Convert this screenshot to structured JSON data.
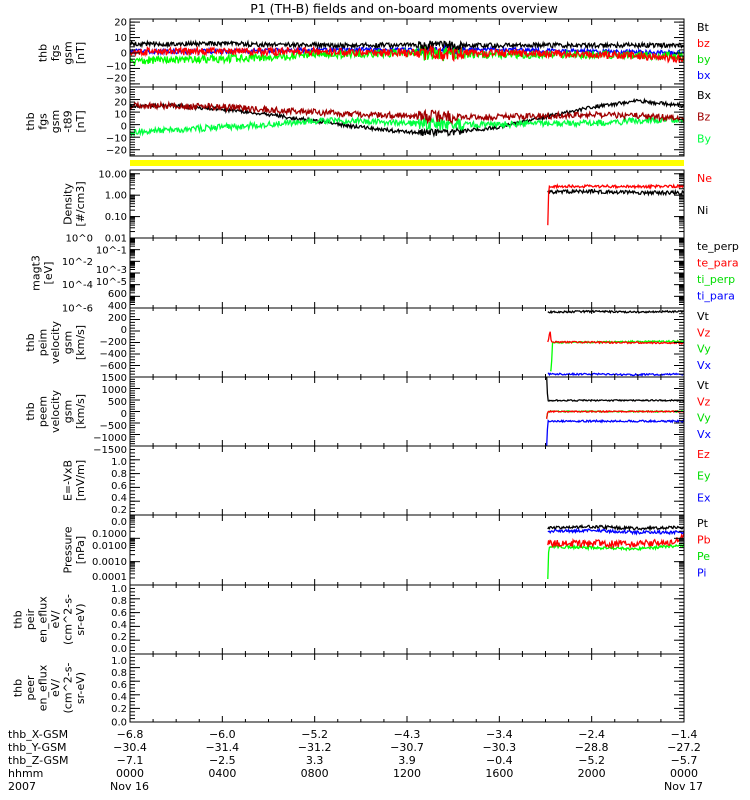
{
  "chart_data": {
    "type": "line",
    "title": "P1 (TH-B) fields and on-board moments overview",
    "xlim_hours": [
      0,
      24
    ],
    "x_ticks": {
      "row_labels": [
        "thb_X-GSM",
        "thb_Y-GSM",
        "thb_Z-GSM",
        "hhmm",
        "2007"
      ],
      "columns": [
        {
          "hour": 0,
          "lines": [
            "-6.8",
            "-30.4",
            "-7.1",
            "0000",
            "Nov 16"
          ]
        },
        {
          "hour": 4,
          "lines": [
            "-6.0",
            "-31.4",
            "-2.5",
            "0400",
            ""
          ]
        },
        {
          "hour": 8,
          "lines": [
            "-5.2",
            "-31.2",
            "3.3",
            "0800",
            ""
          ]
        },
        {
          "hour": 12,
          "lines": [
            "-4.3",
            "-30.7",
            "3.9",
            "1200",
            ""
          ]
        },
        {
          "hour": 16,
          "lines": [
            "-3.4",
            "-30.3",
            "-0.4",
            "1600",
            ""
          ]
        },
        {
          "hour": 20,
          "lines": [
            "-2.4",
            "-28.8",
            "-5.2",
            "2000",
            ""
          ]
        },
        {
          "hour": 24,
          "lines": [
            "-1.4",
            "-27.2",
            "-5.7",
            "0000",
            "Nov 17"
          ]
        }
      ]
    },
    "status_bar": {
      "color": "#ffff00"
    },
    "panels": [
      {
        "ylabel": [
          "thb",
          "fgs",
          "gsm",
          "[nT]"
        ],
        "scale": "linear",
        "ylim": [
          -22,
          22
        ],
        "ticks": [
          {
            "v": 20,
            "l": "20"
          },
          {
            "v": 10,
            "l": "10"
          },
          {
            "v": 0,
            "l": "0"
          },
          {
            "v": -10,
            "l": "-10"
          },
          {
            "v": -20,
            "l": "-20"
          }
        ],
        "minor_step": 2,
        "legend": [
          {
            "label": "Bt",
            "color": "#000000"
          },
          {
            "label": "bz",
            "color": "#ff0000"
          },
          {
            "label": "by",
            "color": "#00dd00"
          },
          {
            "label": "bx",
            "color": "#0000ff"
          }
        ],
        "series": [
          {
            "name": "bx",
            "color": "#0000ff",
            "noise": 1.5,
            "t": [
              0,
              4,
              8,
              12,
              16,
              20,
              24
            ],
            "v": [
              1,
              1,
              2,
              2,
              2,
              1,
              0
            ]
          },
          {
            "name": "by",
            "color": "#00ff00",
            "noise": 2.5,
            "t": [
              0,
              3,
              6,
              8,
              12,
              16,
              20,
              24
            ],
            "v": [
              -5,
              -4,
              -3,
              -1,
              0,
              -1,
              -1,
              -2
            ]
          },
          {
            "name": "bz",
            "color": "#ff0000",
            "noise": 2.5,
            "t": [
              0,
              4,
              8,
              12,
              16,
              20,
              22,
              24
            ],
            "v": [
              1,
              1,
              1,
              0,
              0,
              -1,
              -2,
              -4
            ]
          },
          {
            "name": "Bt",
            "color": "#000000",
            "noise": 1.5,
            "t": [
              0,
              4,
              8,
              12,
              16,
              20,
              24
            ],
            "v": [
              6,
              6,
              5,
              5,
              5,
              5,
              5
            ]
          }
        ]
      },
      {
        "ylabel": [
          "thb",
          "fgs",
          "gsm",
          "-t89",
          "[nT]"
        ],
        "scale": "linear",
        "ylim": [
          -25,
          30
        ],
        "ticks": [
          {
            "v": 30,
            "l": "30"
          },
          {
            "v": 20,
            "l": "20"
          },
          {
            "v": 10,
            "l": "10"
          },
          {
            "v": 0,
            "l": "0"
          },
          {
            "v": -10,
            "l": "-10"
          },
          {
            "v": -20,
            "l": "-20"
          }
        ],
        "minor_step": 2,
        "legend": [
          {
            "label": "Bx",
            "color": "#000000"
          },
          {
            "label": "Bz",
            "color": "#a00000"
          },
          {
            "label": "By",
            "color": "#00ff40"
          }
        ],
        "series": [
          {
            "name": "Bx",
            "color": "#000000",
            "noise": 1.5,
            "t": [
              0,
              2,
              4,
              6,
              8,
              10,
              12,
              14,
              16,
              18,
              20,
              22,
              24
            ],
            "v": [
              15,
              15,
              12,
              8,
              3,
              -2,
              -6,
              -6,
              -2,
              6,
              14,
              19,
              15
            ]
          },
          {
            "name": "By",
            "color": "#00ff40",
            "noise": 2.5,
            "t": [
              0,
              2,
              4,
              6,
              8,
              10,
              12,
              14,
              16,
              18,
              20,
              22,
              24
            ],
            "v": [
              -6,
              -4,
              -2,
              0,
              3,
              3,
              1,
              0,
              0,
              1,
              1,
              3,
              4
            ]
          },
          {
            "name": "Bz",
            "color": "#a00000",
            "noise": 2.5,
            "t": [
              0,
              2,
              4,
              6,
              8,
              10,
              12,
              14,
              16,
              18,
              20,
              22,
              24
            ],
            "v": [
              15,
              15,
              14,
              12,
              10,
              8,
              7,
              6,
              6,
              7,
              8,
              7,
              5
            ]
          }
        ]
      },
      {
        "ylabel": [
          "Density",
          "[#/cm3]"
        ],
        "scale": "log",
        "ylim": [
          0.01,
          15
        ],
        "ticks": [
          {
            "v": 10,
            "l": "10.00"
          },
          {
            "v": 1,
            "l": "1.00"
          },
          {
            "v": 0.1,
            "l": "0.10"
          },
          {
            "v": 0.01,
            "l": "0.01"
          }
        ],
        "legend": [
          {
            "label": "Ne",
            "color": "#ff0000"
          },
          {
            "label": "Ni",
            "color": "#000000"
          }
        ],
        "series": [
          {
            "name": "Ni",
            "color": "#000000",
            "noise": 0.2,
            "t": [
              18.1,
              18.15,
              20,
              22,
              24
            ],
            "v": [
              1.4,
              1.4,
              1.5,
              1.3,
              1.3
            ]
          },
          {
            "name": "Ne",
            "color": "#ff0000",
            "noise": 0.15,
            "t": [
              18.1,
              18.12,
              18.15,
              20,
              22,
              24
            ],
            "v": [
              0.04,
              0.04,
              2.6,
              2.6,
              2.5,
              2.6
            ]
          }
        ]
      },
      {
        "ylabel": [
          "magt3",
          "[eV]"
        ],
        "scale": "log",
        "ylim": [
          1e-06,
          1
        ],
        "ticks": [
          {
            "v": 1,
            "l": "10^0"
          },
          {
            "v": 0.1,
            "l": "10^-1"
          },
          {
            "v": 0.01,
            "l": "10^-2"
          },
          {
            "v": 0.001,
            "l": "10^-3"
          },
          {
            "v": 0.0001,
            "l": "10^-4"
          },
          {
            "v": 1e-05,
            "l": "10^-5"
          },
          {
            "v": 1e-06,
            "l": "10^-6"
          }
        ],
        "legend": [
          {
            "label": "te_perp",
            "color": "#000000"
          },
          {
            "label": "te_para",
            "color": "#ff0000"
          },
          {
            "label": "ti_perp",
            "color": "#00dd00"
          },
          {
            "label": "ti_para",
            "color": "#0000ff"
          }
        ],
        "series": []
      },
      {
        "ylabel": [
          "thb",
          "peim",
          "velocity",
          "gsm",
          "[km/s]"
        ],
        "scale": "linear",
        "ylim": [
          -600,
          600
        ],
        "ticks": [
          {
            "v": 600,
            "l": "600"
          },
          {
            "v": 400,
            "l": "400"
          },
          {
            "v": 200,
            "l": "200"
          },
          {
            "v": 0,
            "l": "0"
          },
          {
            "v": -200,
            "l": "-200"
          },
          {
            "v": -400,
            "l": "-400"
          },
          {
            "v": -600,
            "l": "-600"
          }
        ],
        "minor_step": 50,
        "legend": [
          {
            "label": "Vt",
            "color": "#000000"
          },
          {
            "label": "Vz",
            "color": "#ff0000"
          },
          {
            "label": "Vy",
            "color": "#00dd00"
          },
          {
            "label": "Vx",
            "color": "#0000ff"
          }
        ],
        "series": [
          {
            "name": "Vy",
            "color": "#00ff00",
            "noise": 15,
            "t": [
              18.2,
              18.25,
              18.3,
              21,
              24
            ],
            "v": [
              -500,
              -500,
              0,
              10,
              20
            ]
          },
          {
            "name": "Vz",
            "color": "#ff0000",
            "noise": 15,
            "t": [
              18.1,
              18.2,
              18.25,
              21,
              24
            ],
            "v": [
              0,
              200,
              10,
              0,
              -10
            ]
          },
          {
            "name": "Vx",
            "color": "#0000ff",
            "noise": 15,
            "t": [
              18.1,
              20,
              22,
              24
            ],
            "v": [
              -550,
              -550,
              -560,
              -550
            ]
          },
          {
            "name": "Vt",
            "color": "#000000",
            "noise": 15,
            "t": [
              18.1,
              20,
              22,
              24
            ],
            "v": [
              530,
              540,
              530,
              540
            ]
          }
        ]
      },
      {
        "ylabel": [
          "thb",
          "peem",
          "velocity",
          "gsm",
          "[km/s]"
        ],
        "scale": "linear",
        "ylim": [
          -1500,
          1500
        ],
        "ticks": [
          {
            "v": 1500,
            "l": "1500"
          },
          {
            "v": 1000,
            "l": "1000"
          },
          {
            "v": 500,
            "l": "500"
          },
          {
            "v": 0,
            "l": "0"
          },
          {
            "v": -500,
            "l": "-500"
          },
          {
            "v": -1000,
            "l": "-1000"
          },
          {
            "v": -1500,
            "l": "-1500"
          }
        ],
        "minor_step": 100,
        "legend": [
          {
            "label": "Vt",
            "color": "#000000"
          },
          {
            "label": "Vz",
            "color": "#ff0000"
          },
          {
            "label": "Vy",
            "color": "#00dd00"
          },
          {
            "label": "Vx",
            "color": "#0000ff"
          }
        ],
        "series": [
          {
            "name": "Vy",
            "color": "#00ff00",
            "noise": 30,
            "t": [
              18.05,
              18.1,
              24
            ],
            "v": [
              -300,
              0,
              0
            ]
          },
          {
            "name": "Vz",
            "color": "#ff0000",
            "noise": 30,
            "t": [
              18.05,
              18.1,
              24
            ],
            "v": [
              -300,
              0,
              0
            ]
          },
          {
            "name": "Vx",
            "color": "#0000ff",
            "noise": 40,
            "t": [
              18.05,
              18.1,
              24
            ],
            "v": [
              -1500,
              -420,
              -420
            ]
          },
          {
            "name": "Vt",
            "color": "#000000",
            "noise": 30,
            "t": [
              18.05,
              18.1,
              24
            ],
            "v": [
              1500,
              480,
              480
            ]
          }
        ]
      },
      {
        "ylabel": [
          "E=-VxB",
          "[mV/m]"
        ],
        "scale": "linear",
        "ylim": [
          0,
          1
        ],
        "ticks": [
          {
            "v": 1,
            "l": "1.0"
          },
          {
            "v": 0.8,
            "l": "0.8"
          },
          {
            "v": 0.6,
            "l": "0.6"
          },
          {
            "v": 0.4,
            "l": "0.4"
          },
          {
            "v": 0.2,
            "l": "0.2"
          },
          {
            "v": 0,
            "l": "0.0"
          }
        ],
        "minor_step": 0.05,
        "legend": [
          {
            "label": "Ez",
            "color": "#ff0000"
          },
          {
            "label": "Ey",
            "color": "#00dd00"
          },
          {
            "label": "Ex",
            "color": "#0000ff"
          }
        ],
        "series": []
      },
      {
        "ylabel": [
          "Pressure",
          "[nPa]"
        ],
        "scale": "log",
        "ylim": [
          0.0001,
          0.1
        ],
        "ticks": [
          {
            "v": 0.1,
            "l": "0.1000"
          },
          {
            "v": 0.01,
            "l": "0.0100"
          },
          {
            "v": 0.001,
            "l": "0.0010"
          },
          {
            "v": 0.0001,
            "l": "0.0001"
          }
        ],
        "legend": [
          {
            "label": "Pt",
            "color": "#000000"
          },
          {
            "label": "Pb",
            "color": "#ff0000"
          },
          {
            "label": "Pe",
            "color": "#00dd00"
          },
          {
            "label": "Pi",
            "color": "#0000ff"
          }
        ],
        "series": [
          {
            "name": "Pe",
            "color": "#00ff00",
            "noise": 0.15,
            "t": [
              18.1,
              18.15,
              18.3,
              20,
              22,
              24
            ],
            "v": [
              0.0002,
              0.004,
              0.0045,
              0.004,
              0.0035,
              0.005
            ]
          },
          {
            "name": "Pb",
            "color": "#ff0000",
            "noise": 0.35,
            "t": [
              18.1,
              20,
              22,
              23.5,
              24
            ],
            "v": [
              0.006,
              0.006,
              0.006,
              0.007,
              0.012
            ]
          },
          {
            "name": "Pi",
            "color": "#0000ff",
            "noise": 0.15,
            "t": [
              18.1,
              20,
              22,
              24
            ],
            "v": [
              0.02,
              0.022,
              0.018,
              0.018
            ]
          },
          {
            "name": "Pt",
            "color": "#000000",
            "noise": 0.15,
            "t": [
              18.1,
              20,
              22,
              24
            ],
            "v": [
              0.028,
              0.032,
              0.026,
              0.03
            ]
          }
        ]
      },
      {
        "ylabel": [
          "thb",
          "peir",
          "en_eflux",
          "eV/",
          "(cm^2-s-",
          "sr-eV)"
        ],
        "scale": "linear",
        "ylim": [
          0,
          1
        ],
        "ticks": [
          {
            "v": 1,
            "l": "1.0"
          },
          {
            "v": 0.8,
            "l": "0.8"
          },
          {
            "v": 0.6,
            "l": "0.6"
          },
          {
            "v": 0.4,
            "l": "0.4"
          },
          {
            "v": 0.2,
            "l": "0.2"
          },
          {
            "v": 0,
            "l": "0.0"
          }
        ],
        "minor_step": 0.05,
        "legend": [],
        "series": []
      },
      {
        "ylabel": [
          "thb",
          "peer",
          "en_eflux",
          "eV/",
          "(cm^2-s-",
          "sr-eV)"
        ],
        "scale": "linear",
        "ylim": [
          0,
          1
        ],
        "ticks": [
          {
            "v": 1,
            "l": "1.0"
          },
          {
            "v": 0.8,
            "l": "0.8"
          },
          {
            "v": 0.6,
            "l": "0.6"
          },
          {
            "v": 0.4,
            "l": "0.4"
          },
          {
            "v": 0.2,
            "l": "0.2"
          },
          {
            "v": 0,
            "l": "0.0"
          }
        ],
        "minor_step": 0.05,
        "legend": [],
        "series": []
      }
    ]
  }
}
